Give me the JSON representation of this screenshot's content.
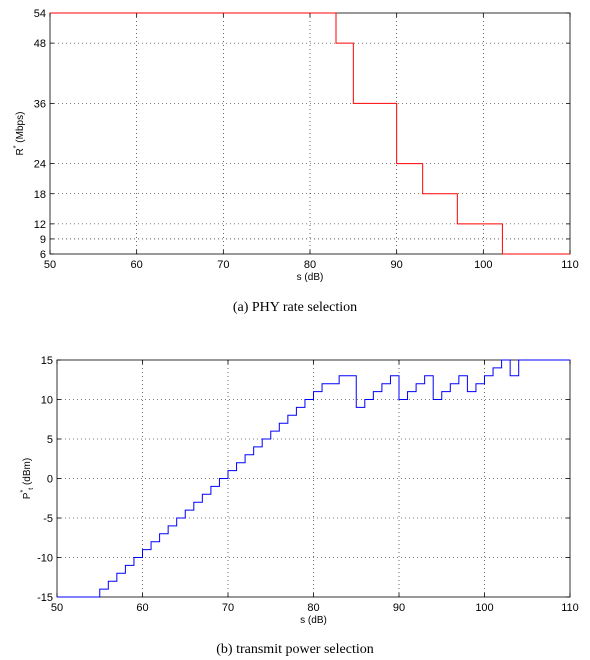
{
  "chart_data": [
    {
      "type": "line",
      "caption": "(a) PHY rate selection",
      "xlabel": "s (dB)",
      "ylabel": {
        "main": "R",
        "sup": "*",
        "unit": " (Mbps)"
      },
      "xlim": [
        50,
        110
      ],
      "ylim": [
        6,
        54
      ],
      "xticks": [
        50,
        60,
        70,
        80,
        90,
        100,
        110
      ],
      "yticks": [
        6,
        9,
        12,
        18,
        24,
        36,
        48,
        54
      ],
      "grid": "dotted",
      "line_color": "#ff0000",
      "step": true,
      "series": [
        {
          "x": [
            50,
            83,
            83,
            85,
            85,
            90,
            90,
            93,
            93,
            97,
            97,
            102.2,
            102.2,
            110
          ],
          "y": [
            54,
            54,
            48,
            48,
            36,
            36,
            24,
            24,
            18,
            18,
            12,
            12,
            6,
            6
          ]
        }
      ]
    },
    {
      "type": "line",
      "caption": "(b) transmit power selection",
      "xlabel": "s (dB)",
      "ylabel": {
        "main": "P",
        "sup": "*",
        "sub": "t",
        "unit": " (dBm)"
      },
      "xlim": [
        50,
        110
      ],
      "ylim": [
        -15,
        15
      ],
      "xticks": [
        50,
        60,
        70,
        80,
        90,
        100,
        110
      ],
      "yticks": [
        -15,
        -10,
        -5,
        0,
        5,
        10,
        15
      ],
      "grid": "dotted",
      "line_color": "#0000ff",
      "step": true,
      "series": [
        {
          "x": [
            50,
            55,
            56,
            57,
            58,
            59,
            60,
            61,
            62,
            63,
            64,
            65,
            66,
            67,
            68,
            69,
            70,
            71,
            72,
            73,
            74,
            75,
            76,
            77,
            78,
            79,
            80,
            81,
            82,
            83,
            84,
            85,
            86,
            87,
            88,
            89,
            90,
            91,
            92,
            93,
            94,
            95,
            96,
            97,
            98,
            99,
            100,
            101,
            102,
            103,
            104,
            110
          ],
          "y": [
            -15,
            -14,
            -13,
            -12,
            -11,
            -10,
            -9,
            -8,
            -7,
            -6,
            -5,
            -4,
            -3,
            -2,
            -1,
            0,
            1,
            2,
            3,
            4,
            5,
            6,
            7,
            8,
            9,
            10,
            11,
            12,
            12,
            13,
            13,
            9,
            10,
            11,
            12,
            13,
            10,
            11,
            12,
            13,
            10,
            11,
            12,
            13,
            11,
            12,
            13,
            14,
            15,
            13,
            15,
            15
          ]
        }
      ]
    }
  ]
}
